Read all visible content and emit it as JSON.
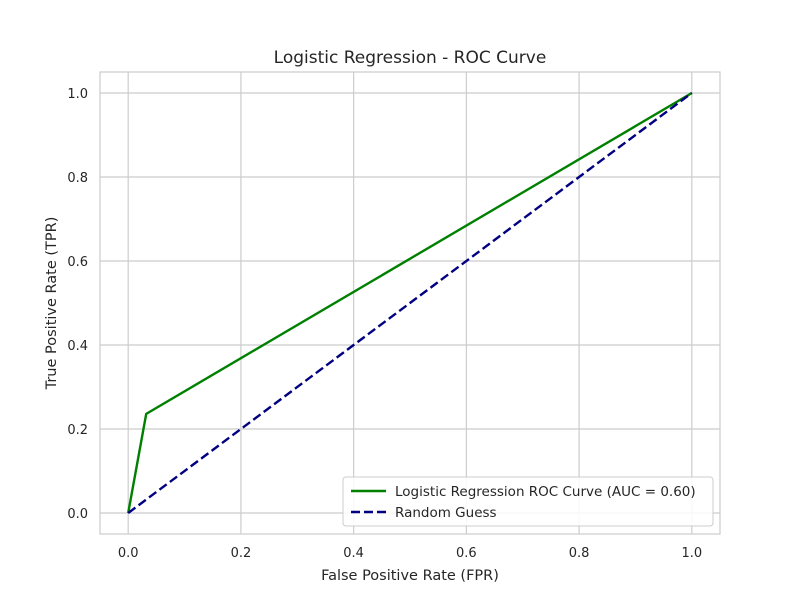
{
  "chart_data": {
    "type": "line",
    "title": "Logistic Regression - ROC Curve",
    "xlabel": "False Positive Rate (FPR)",
    "ylabel": "True Positive Rate (TPR)",
    "xlim": [
      -0.05,
      1.05
    ],
    "ylim": [
      -0.05,
      1.05
    ],
    "xticks": [
      0.0,
      0.2,
      0.4,
      0.6,
      0.8,
      1.0
    ],
    "yticks": [
      0.0,
      0.2,
      0.4,
      0.6,
      0.8,
      1.0
    ],
    "xtick_labels": [
      "0.0",
      "0.2",
      "0.4",
      "0.6",
      "0.8",
      "1.0"
    ],
    "ytick_labels": [
      "0.0",
      "0.2",
      "0.4",
      "0.6",
      "0.8",
      "1.0"
    ],
    "grid": true,
    "legend_position": "bottom-right",
    "series": [
      {
        "name": "Logistic Regression ROC Curve (AUC = 0.60)",
        "color": "#008000",
        "line_style": "solid",
        "x": [
          0.0,
          0.032,
          1.0
        ],
        "y": [
          0.0,
          0.236,
          1.0
        ]
      },
      {
        "name": "Random Guess",
        "color": "#000080",
        "line_style": "dashed",
        "x": [
          0.0,
          1.0
        ],
        "y": [
          0.0,
          1.0
        ]
      }
    ]
  }
}
